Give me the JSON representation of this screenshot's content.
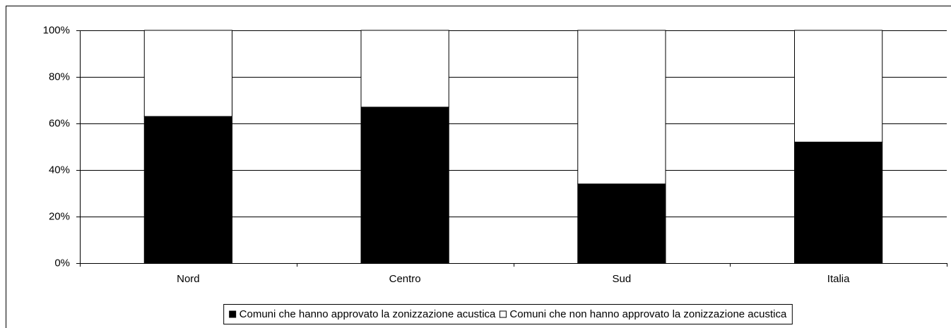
{
  "chart_data": {
    "type": "stacked-bar",
    "categories": [
      "Nord",
      "Centro",
      "Sud",
      "Italia"
    ],
    "series": [
      {
        "name": "Comuni che hanno approvato la zonizzazione acustica",
        "color": "#000000",
        "values": [
          63,
          67,
          34,
          52
        ]
      },
      {
        "name": "Comuni che non hanno approvato la zonizzazione acustica",
        "color": "#ffffff",
        "values": [
          37,
          33,
          66,
          48
        ]
      }
    ],
    "ylim": [
      0,
      100
    ],
    "yticks": [
      {
        "value": 0,
        "label": "0%"
      },
      {
        "value": 20,
        "label": "20%"
      },
      {
        "value": 40,
        "label": "40%"
      },
      {
        "value": 60,
        "label": "60%"
      },
      {
        "value": 80,
        "label": "80%"
      },
      {
        "value": 100,
        "label": "100%"
      }
    ],
    "grid": true,
    "legend": "bottom"
  }
}
